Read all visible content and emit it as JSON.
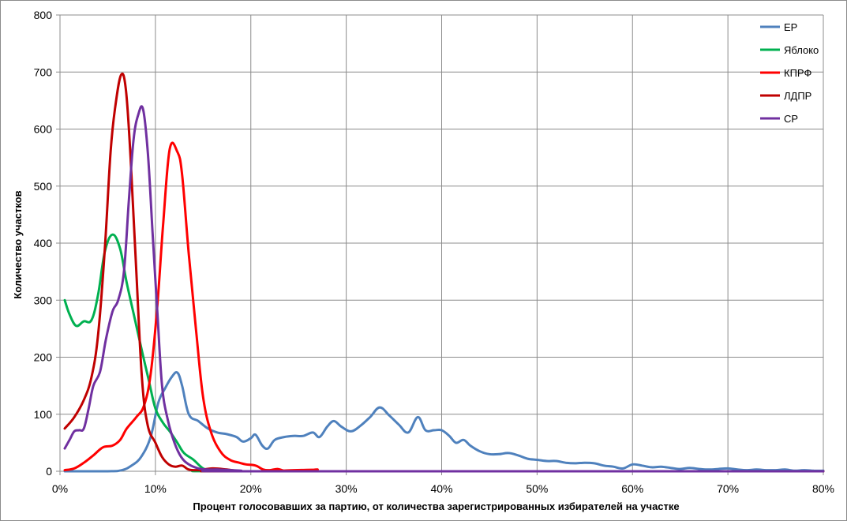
{
  "chart_data": {
    "type": "line",
    "title": "",
    "xlabel": "Процент голосовавших за партию, от количества зарегистрированных избирателей на участке",
    "ylabel": "Количество участков",
    "xlim": [
      0,
      80
    ],
    "ylim": [
      0,
      800
    ],
    "x_ticks": [
      0,
      10,
      20,
      30,
      40,
      50,
      60,
      70,
      80
    ],
    "x_tick_labels": [
      "0%",
      "10%",
      "20%",
      "30%",
      "40%",
      "50%",
      "60%",
      "70%",
      "80%"
    ],
    "y_ticks": [
      0,
      100,
      200,
      300,
      400,
      500,
      600,
      700,
      800
    ],
    "y_tick_labels": [
      "0",
      "100",
      "200",
      "300",
      "400",
      "500",
      "600",
      "700",
      "800"
    ],
    "grid": true,
    "legend_position": "top-right",
    "series": [
      {
        "name": "ЕР",
        "color": "#4f81bd",
        "points": [
          [
            0.5,
            0
          ],
          [
            5,
            0
          ],
          [
            6.5,
            2
          ],
          [
            7.5,
            10
          ],
          [
            8.5,
            25
          ],
          [
            9.5,
            60
          ],
          [
            10.3,
            120
          ],
          [
            11,
            145
          ],
          [
            11.7,
            165
          ],
          [
            12.3,
            173
          ],
          [
            12.8,
            150
          ],
          [
            13.5,
            100
          ],
          [
            14.5,
            88
          ],
          [
            15.5,
            75
          ],
          [
            16.5,
            68
          ],
          [
            17.5,
            65
          ],
          [
            18.5,
            60
          ],
          [
            19.2,
            52
          ],
          [
            20,
            58
          ],
          [
            20.5,
            64
          ],
          [
            21.2,
            45
          ],
          [
            21.8,
            40
          ],
          [
            22.5,
            55
          ],
          [
            23.5,
            60
          ],
          [
            24.5,
            62
          ],
          [
            25.5,
            62
          ],
          [
            26.5,
            68
          ],
          [
            27.2,
            60
          ],
          [
            28,
            78
          ],
          [
            28.7,
            88
          ],
          [
            29.5,
            78
          ],
          [
            30.5,
            70
          ],
          [
            31.5,
            80
          ],
          [
            32.5,
            95
          ],
          [
            33.5,
            112
          ],
          [
            34.5,
            98
          ],
          [
            35.5,
            82
          ],
          [
            36.5,
            68
          ],
          [
            37.5,
            95
          ],
          [
            38.3,
            72
          ],
          [
            39.2,
            72
          ],
          [
            40,
            72
          ],
          [
            40.8,
            62
          ],
          [
            41.5,
            50
          ],
          [
            42.3,
            55
          ],
          [
            43,
            45
          ],
          [
            44,
            35
          ],
          [
            45,
            30
          ],
          [
            46,
            30
          ],
          [
            47,
            32
          ],
          [
            48,
            28
          ],
          [
            49,
            22
          ],
          [
            50,
            20
          ],
          [
            51,
            18
          ],
          [
            52,
            18
          ],
          [
            53,
            15
          ],
          [
            54,
            14
          ],
          [
            55,
            15
          ],
          [
            56,
            14
          ],
          [
            57,
            10
          ],
          [
            58,
            8
          ],
          [
            59,
            5
          ],
          [
            60,
            12
          ],
          [
            61,
            10
          ],
          [
            62,
            7
          ],
          [
            63,
            8
          ],
          [
            64,
            6
          ],
          [
            65,
            4
          ],
          [
            66,
            6
          ],
          [
            67,
            4
          ],
          [
            68,
            3
          ],
          [
            69,
            4
          ],
          [
            70,
            5
          ],
          [
            71,
            3
          ],
          [
            72,
            2
          ],
          [
            73,
            3
          ],
          [
            74,
            2
          ],
          [
            75,
            2
          ],
          [
            76,
            3
          ],
          [
            77,
            1
          ],
          [
            78,
            2
          ],
          [
            79,
            1
          ],
          [
            80,
            1
          ]
        ]
      },
      {
        "name": "Яблоко",
        "color": "#00b050",
        "points": [
          [
            0.5,
            300
          ],
          [
            1,
            275
          ],
          [
            1.7,
            255
          ],
          [
            2.5,
            263
          ],
          [
            3.3,
            265
          ],
          [
            4,
            310
          ],
          [
            4.7,
            385
          ],
          [
            5.5,
            415
          ],
          [
            6.3,
            390
          ],
          [
            7,
            330
          ],
          [
            7.8,
            270
          ],
          [
            8.6,
            210
          ],
          [
            9.3,
            160
          ],
          [
            10,
            110
          ],
          [
            10.8,
            85
          ],
          [
            11.5,
            70
          ],
          [
            12.3,
            50
          ],
          [
            13,
            32
          ],
          [
            14,
            20
          ],
          [
            15,
            5
          ],
          [
            16,
            2
          ],
          [
            17,
            1
          ],
          [
            18,
            1
          ],
          [
            19,
            0
          ],
          [
            80,
            0
          ]
        ]
      },
      {
        "name": "КПРФ",
        "color": "#ff0000",
        "points": [
          [
            0.5,
            2
          ],
          [
            1.5,
            5
          ],
          [
            2.5,
            15
          ],
          [
            3.5,
            28
          ],
          [
            4.5,
            42
          ],
          [
            5.5,
            45
          ],
          [
            6.3,
            55
          ],
          [
            7,
            75
          ],
          [
            8,
            95
          ],
          [
            8.8,
            115
          ],
          [
            9.5,
            170
          ],
          [
            10.2,
            290
          ],
          [
            10.8,
            430
          ],
          [
            11.5,
            565
          ],
          [
            12.3,
            560
          ],
          [
            12.8,
            520
          ],
          [
            13.5,
            380
          ],
          [
            14.3,
            240
          ],
          [
            15,
            130
          ],
          [
            15.8,
            70
          ],
          [
            16.8,
            35
          ],
          [
            17.8,
            20
          ],
          [
            18.8,
            15
          ],
          [
            19.5,
            12
          ],
          [
            20.5,
            10
          ],
          [
            21.3,
            3
          ],
          [
            22,
            2
          ],
          [
            22.8,
            4
          ],
          [
            23.5,
            1
          ],
          [
            24.5,
            0
          ],
          [
            25.5,
            0
          ],
          [
            26.3,
            2
          ],
          [
            27,
            3
          ],
          [
            27.7,
            0
          ],
          [
            80,
            0
          ]
        ]
      },
      {
        "name": "ЛДПР",
        "color": "#c00000",
        "points": [
          [
            0.5,
            75
          ],
          [
            1.5,
            95
          ],
          [
            2.5,
            125
          ],
          [
            3.3,
            165
          ],
          [
            4,
            240
          ],
          [
            4.7,
            390
          ],
          [
            5.3,
            560
          ],
          [
            5.8,
            640
          ],
          [
            6.4,
            695
          ],
          [
            6.9,
            670
          ],
          [
            7.4,
            550
          ],
          [
            8,
            350
          ],
          [
            8.6,
            160
          ],
          [
            9.2,
            80
          ],
          [
            10,
            50
          ],
          [
            10.7,
            25
          ],
          [
            11.4,
            12
          ],
          [
            12.1,
            8
          ],
          [
            12.8,
            10
          ],
          [
            13.5,
            3
          ],
          [
            14.5,
            2
          ],
          [
            16,
            5
          ],
          [
            17.5,
            3
          ],
          [
            18.5,
            1
          ],
          [
            20,
            0
          ],
          [
            80,
            0
          ]
        ]
      },
      {
        "name": "СР",
        "color": "#7030a0",
        "points": [
          [
            0.5,
            40
          ],
          [
            1,
            55
          ],
          [
            1.5,
            70
          ],
          [
            2,
            72
          ],
          [
            2.5,
            75
          ],
          [
            3,
            110
          ],
          [
            3.5,
            150
          ],
          [
            4.2,
            175
          ],
          [
            4.8,
            230
          ],
          [
            5.5,
            280
          ],
          [
            6.1,
            300
          ],
          [
            6.7,
            350
          ],
          [
            7.2,
            470
          ],
          [
            7.7,
            580
          ],
          [
            8.2,
            625
          ],
          [
            8.7,
            635
          ],
          [
            9.2,
            560
          ],
          [
            9.7,
            420
          ],
          [
            10.2,
            280
          ],
          [
            10.7,
            150
          ],
          [
            11.3,
            90
          ],
          [
            12,
            50
          ],
          [
            12.7,
            25
          ],
          [
            13.5,
            12
          ],
          [
            14.5,
            5
          ],
          [
            15.5,
            3
          ],
          [
            16.5,
            3
          ],
          [
            18,
            2
          ],
          [
            19,
            1
          ],
          [
            20,
            0
          ],
          [
            80,
            0
          ]
        ]
      }
    ]
  }
}
